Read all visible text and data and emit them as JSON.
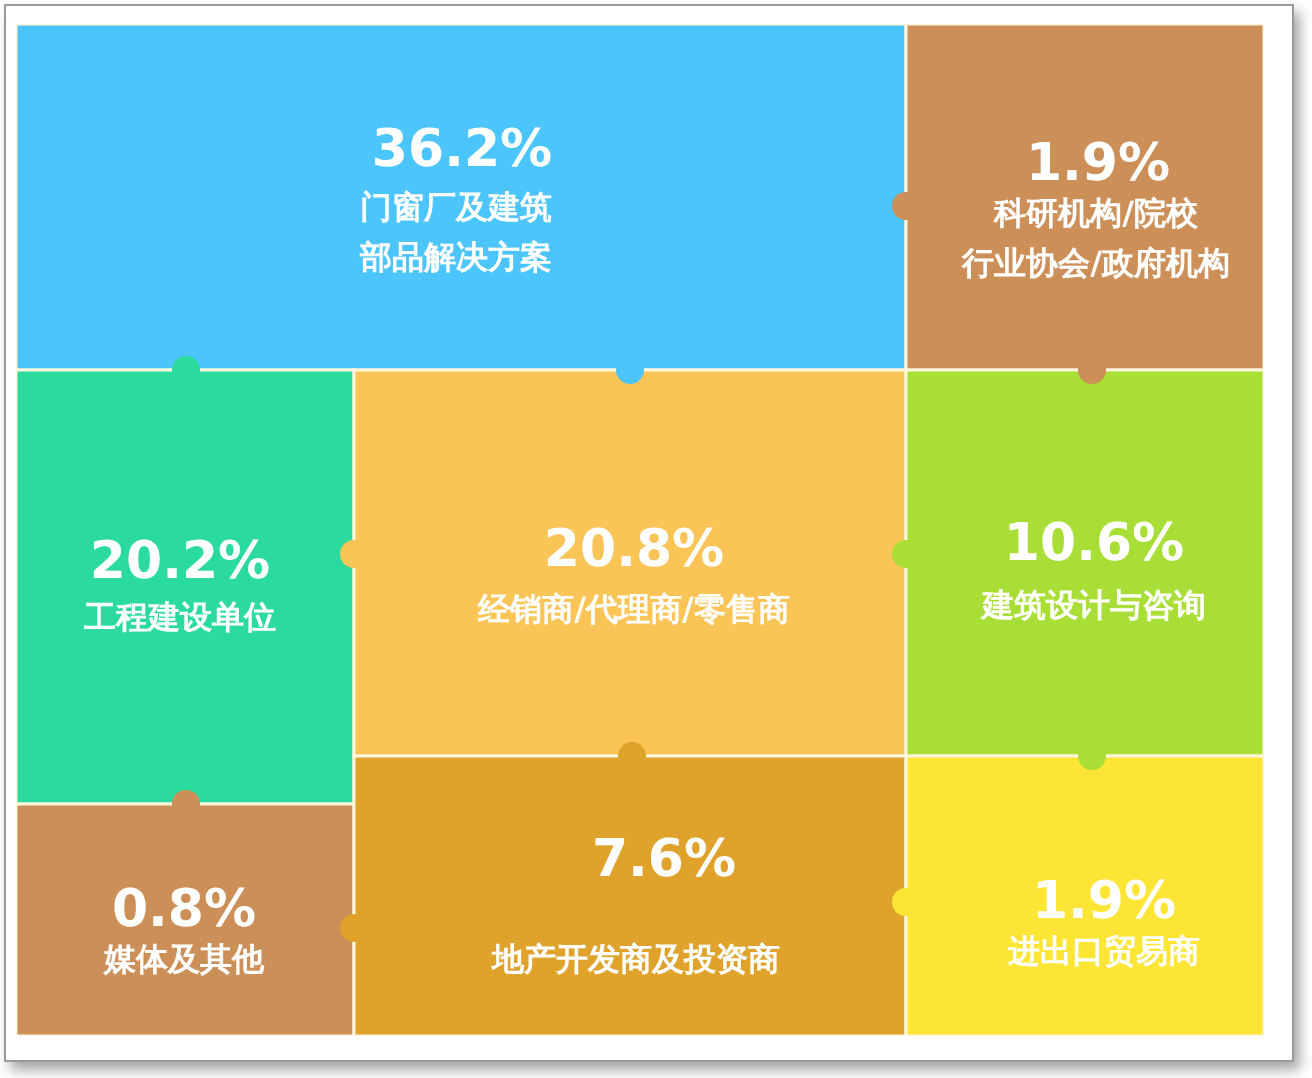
{
  "chart_data": {
    "type": "other",
    "categories": [
      "门窗厂及建筑部品解决方案",
      "科研机构/院校行业协会/政府机构",
      "工程建设单位",
      "经销商/代理商/零售商",
      "建筑设计与咨询",
      "媒体及其他",
      "地产开发商及投资商",
      "进出口贸易商"
    ],
    "values": [
      36.2,
      1.9,
      20.2,
      20.8,
      10.6,
      0.8,
      7.6,
      1.9
    ],
    "value_labels": [
      "36.2%",
      "1.9%",
      "20.2%",
      "20.8%",
      "10.6%",
      "0.8%",
      "7.6%",
      "1.9%"
    ],
    "colors": [
      "#4cc5fd",
      "#cd8f58",
      "#2bda9d",
      "#fbc457",
      "#a8de35",
      "#cd8f58",
      "#dfa22b",
      "#fde535"
    ]
  }
}
